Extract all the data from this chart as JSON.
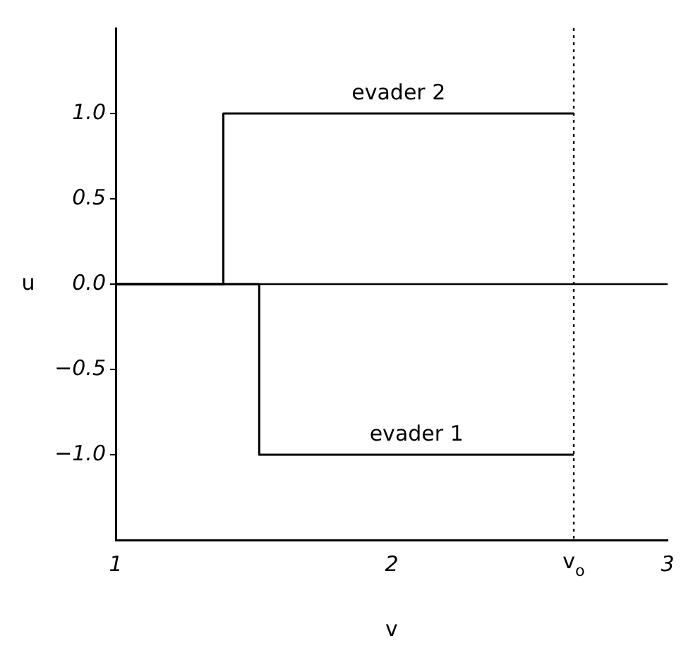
{
  "chart_data": {
    "type": "line",
    "xlabel": "v",
    "ylabel": "u",
    "xlim": [
      1,
      3
    ],
    "xticks": [
      1,
      2,
      3
    ],
    "ylim": [
      -1.5,
      1.5
    ],
    "yticks": [
      {
        "value": -1,
        "label": "−1.0"
      },
      {
        "value": -0.5,
        "label": "−0.5"
      },
      {
        "value": 0,
        "label": "0.0"
      },
      {
        "value": 0.5,
        "label": "0.5"
      },
      {
        "value": 1,
        "label": "1.0"
      }
    ],
    "series": [
      {
        "name": "evader 2",
        "color": "#000000",
        "x": [
          1,
          1.39,
          1.39,
          2.66
        ],
        "values": [
          0,
          0,
          1,
          1
        ]
      },
      {
        "name": "evader 1",
        "color": "#000000",
        "x": [
          1,
          1.52,
          1.52,
          2.66
        ],
        "values": [
          0,
          0,
          -1,
          -1
        ]
      }
    ],
    "ref_lines": [
      {
        "axis": "y",
        "value": 0,
        "color": "#000000",
        "line_style": "solid"
      },
      {
        "axis": "x",
        "value": 2.66,
        "label": "v$_{o}$",
        "color": "#000000",
        "line_style": "dotted"
      }
    ],
    "grid": false,
    "legend": false,
    "marker": "none",
    "line_style": "solid"
  }
}
